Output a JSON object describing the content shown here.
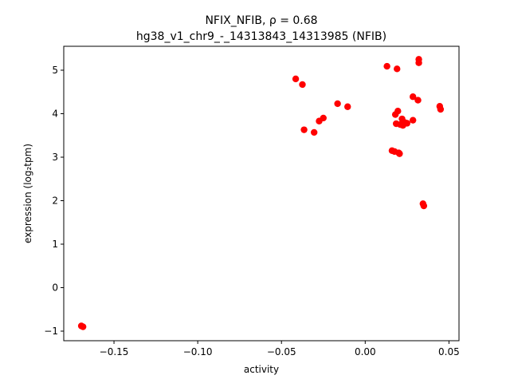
{
  "chart_data": {
    "type": "scatter",
    "title_line1": "NFIX_NFIB, ρ = 0.68",
    "title_line2": "hg38_v1_chr9_-_14313843_14313985 (NFIB)",
    "xlabel": "activity",
    "ylabel": "expression (log₂tpm)",
    "xlim": [
      -0.18,
      0.056
    ],
    "ylim": [
      -1.22,
      5.55
    ],
    "xticks": [
      -0.15,
      -0.1,
      -0.05,
      0.0,
      0.05
    ],
    "xtick_labels": [
      "−0.15",
      "−0.10",
      "−0.05",
      "0.00",
      "0.05"
    ],
    "yticks": [
      -1,
      0,
      1,
      2,
      3,
      4,
      5
    ],
    "ytick_labels": [
      "−1",
      "0",
      "1",
      "2",
      "3",
      "4",
      "5"
    ],
    "grid": false,
    "marker_color": "#ff0000",
    "points": [
      {
        "x": -0.1695,
        "y": -0.88
      },
      {
        "x": -0.1685,
        "y": -0.9
      },
      {
        "x": -0.0415,
        "y": 4.8
      },
      {
        "x": -0.0375,
        "y": 4.67
      },
      {
        "x": -0.0365,
        "y": 3.63
      },
      {
        "x": -0.0305,
        "y": 3.57
      },
      {
        "x": -0.0275,
        "y": 3.83
      },
      {
        "x": -0.025,
        "y": 3.9
      },
      {
        "x": -0.0165,
        "y": 4.23
      },
      {
        "x": -0.0105,
        "y": 4.16
      },
      {
        "x": 0.013,
        "y": 5.09
      },
      {
        "x": 0.019,
        "y": 5.03
      },
      {
        "x": 0.016,
        "y": 3.15
      },
      {
        "x": 0.0175,
        "y": 3.13
      },
      {
        "x": 0.02,
        "y": 3.1
      },
      {
        "x": 0.0205,
        "y": 3.08
      },
      {
        "x": 0.018,
        "y": 3.98
      },
      {
        "x": 0.0195,
        "y": 4.06
      },
      {
        "x": 0.0185,
        "y": 3.77
      },
      {
        "x": 0.021,
        "y": 3.75
      },
      {
        "x": 0.022,
        "y": 3.88
      },
      {
        "x": 0.0225,
        "y": 3.73
      },
      {
        "x": 0.0235,
        "y": 3.8
      },
      {
        "x": 0.025,
        "y": 3.78
      },
      {
        "x": 0.0285,
        "y": 3.85
      },
      {
        "x": 0.0285,
        "y": 4.39
      },
      {
        "x": 0.0315,
        "y": 4.31
      },
      {
        "x": 0.032,
        "y": 5.25
      },
      {
        "x": 0.032,
        "y": 5.17
      },
      {
        "x": 0.0345,
        "y": 1.93
      },
      {
        "x": 0.035,
        "y": 1.88
      },
      {
        "x": 0.0445,
        "y": 4.17
      },
      {
        "x": 0.045,
        "y": 4.1
      }
    ]
  }
}
